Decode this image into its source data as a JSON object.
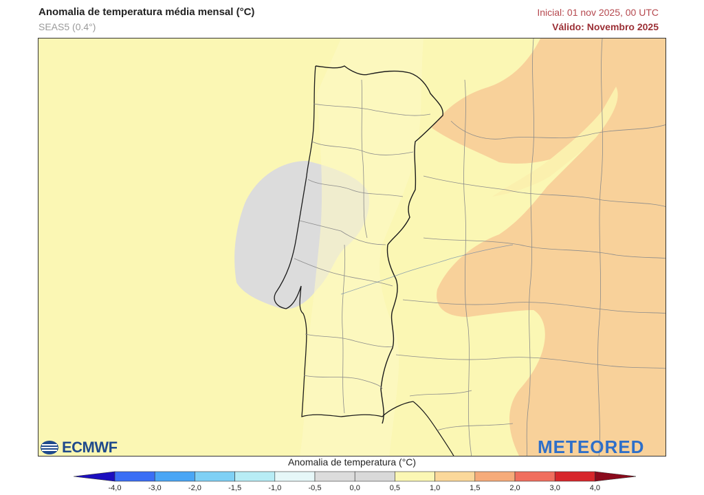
{
  "header": {
    "title": "Anomalia de temperatura média mensal (°C)",
    "model": "SEAS5 (0.4°)",
    "initial": "Inicial: 01 nov 2025, 00 UTC",
    "valid": "Válido: Novembro 2025"
  },
  "logos": {
    "left": "ECMWF",
    "right": "METEORED"
  },
  "colorbar": {
    "title": "Anomalia de temperatura (°C)",
    "ticks": [
      "-4,0",
      "-3,0",
      "-2,0",
      "-1,5",
      "-1,0",
      "-0,5",
      "0,0",
      "0,5",
      "1,0",
      "1,5",
      "2,0",
      "3,0",
      "4,0"
    ],
    "colors": [
      "#2a2ae0",
      "#3a6ef5",
      "#4aa6f5",
      "#7fd0f5",
      "#b7ecf5",
      "#e6f7f8",
      "#dcdcdc",
      "#d9d9d9",
      "#fbf7b4",
      "#fbd89a",
      "#f6ab7a",
      "#f06e5e",
      "#d7262b"
    ],
    "under_color": "#1c0fbf",
    "over_color": "#8a0a1c"
  },
  "map": {
    "background_color": "#fbf7b4",
    "warm_color": "#f8d19a",
    "cool_color": "#dcdcdc",
    "border_color": "#1a1a1a",
    "district_color": "#8a8a8a"
  }
}
